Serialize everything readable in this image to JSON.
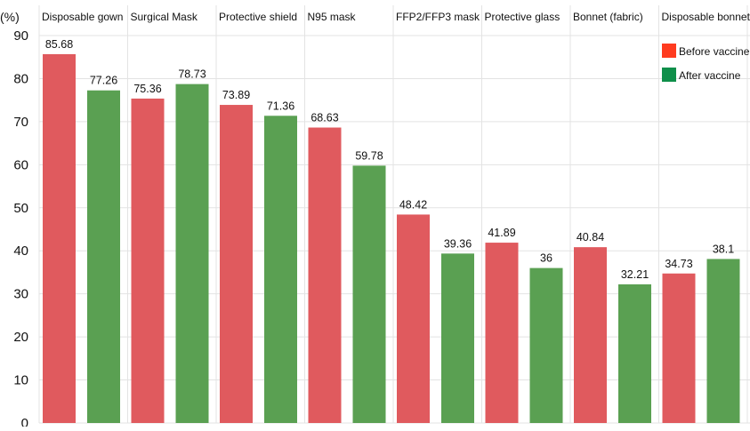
{
  "chart_data": {
    "type": "bar",
    "title": "",
    "xlabel": "",
    "ylabel": "(%)",
    "ylim": [
      0,
      90
    ],
    "yticks": [
      0,
      10,
      20,
      30,
      40,
      50,
      60,
      70,
      80,
      90
    ],
    "grid": true,
    "legend_position": "top-right",
    "categories": [
      "Disposable gown",
      "Surgical Mask",
      "Protective shield",
      "N95 mask",
      "FFP2/FFP3 mask",
      "Protective glass",
      "Bonnet (fabric)",
      "Disposable bonnet"
    ],
    "series": [
      {
        "name": "Before vaccine",
        "color": "#e05a5e",
        "legend_color": "#ff3b1f",
        "values": [
          85.68,
          75.36,
          73.89,
          68.63,
          48.42,
          41.89,
          40.84,
          34.73
        ],
        "labels": [
          "85.68",
          "75.36",
          "73.89",
          "68.63",
          "48.42",
          "41.89",
          "40.84",
          "34.73"
        ]
      },
      {
        "name": "After vaccine",
        "color": "#5aa052",
        "legend_color": "#0f8f4a",
        "values": [
          77.26,
          78.73,
          71.36,
          59.78,
          39.36,
          36,
          32.21,
          38.1
        ],
        "labels": [
          "77.26",
          "78.73",
          "71.36",
          "59.78",
          "39.36",
          "36",
          "32.21",
          "38.1"
        ]
      }
    ]
  }
}
